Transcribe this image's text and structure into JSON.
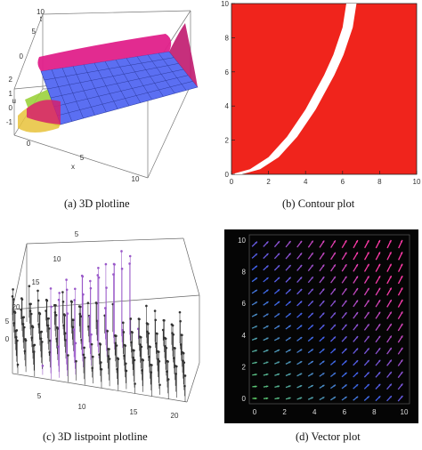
{
  "captions": {
    "a": "(a)  3D plotline",
    "b": "(b)  Contour plot",
    "c": "(c)  3D listpoint plotline",
    "d": "(d)  Vector plot"
  },
  "chart_data": [
    {
      "type": "surface3d",
      "axis_labels": {
        "t": "t",
        "x": "x",
        "u": "u"
      },
      "t_ticks": [
        "10",
        "5",
        "0"
      ],
      "x_ticks": [
        "0",
        "5",
        "10"
      ],
      "u_ticks": [
        "2",
        "1",
        "0",
        "-1"
      ],
      "colors": {
        "surface": "#5b6ff2",
        "edge": "#e0208a",
        "lower": "#9bd23c"
      }
    },
    {
      "type": "contour",
      "x_ticks": [
        "0",
        "2",
        "4",
        "6",
        "8",
        "10"
      ],
      "y_ticks": [
        "0",
        "2",
        "4",
        "6",
        "8",
        "10"
      ],
      "xlim": [
        0,
        10
      ],
      "ylim": [
        0,
        10
      ],
      "band": {
        "x": [
          0.0,
          1.0,
          2.0,
          3.0,
          4.0,
          5.0,
          5.5,
          6.0,
          6.2
        ],
        "y": [
          0.0,
          0.3,
          1.0,
          2.2,
          3.8,
          5.8,
          7.0,
          8.6,
          10.0
        ]
      },
      "colors": {
        "fill": "#f0241c",
        "band": "#ffffff"
      }
    },
    {
      "type": "listpoint3d",
      "x_ticks": [
        "5",
        "10",
        "15",
        "20"
      ],
      "y_ticks": [
        "5",
        "10",
        "15",
        "20"
      ],
      "z_ticks": [
        "5",
        "0"
      ],
      "grid_size": 21,
      "colors": {
        "stem": "#333333",
        "accent": "#9a59c9"
      }
    },
    {
      "type": "vector",
      "x_ticks": [
        "0",
        "2",
        "4",
        "6",
        "8",
        "10"
      ],
      "y_ticks": [
        "0",
        "2",
        "4",
        "6",
        "8",
        "10"
      ],
      "xlim": [
        0,
        10
      ],
      "ylim": [
        0,
        10
      ],
      "colors": {
        "background": "#050505",
        "low": "#5fd36a",
        "mid": "#3d63f0",
        "high": "#ff3aa8"
      }
    }
  ]
}
